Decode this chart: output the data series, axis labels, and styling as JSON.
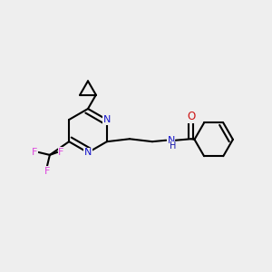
{
  "bg_color": "#eeeeee",
  "bond_color": "#000000",
  "N_color": "#1414cc",
  "O_color": "#cc1414",
  "F_color": "#dd44dd",
  "NH_color": "#1414aa",
  "line_width": 1.5,
  "fig_size": [
    3.0,
    3.0
  ],
  "dpi": 100,
  "xlim": [
    0,
    10
  ],
  "ylim": [
    0,
    10
  ]
}
